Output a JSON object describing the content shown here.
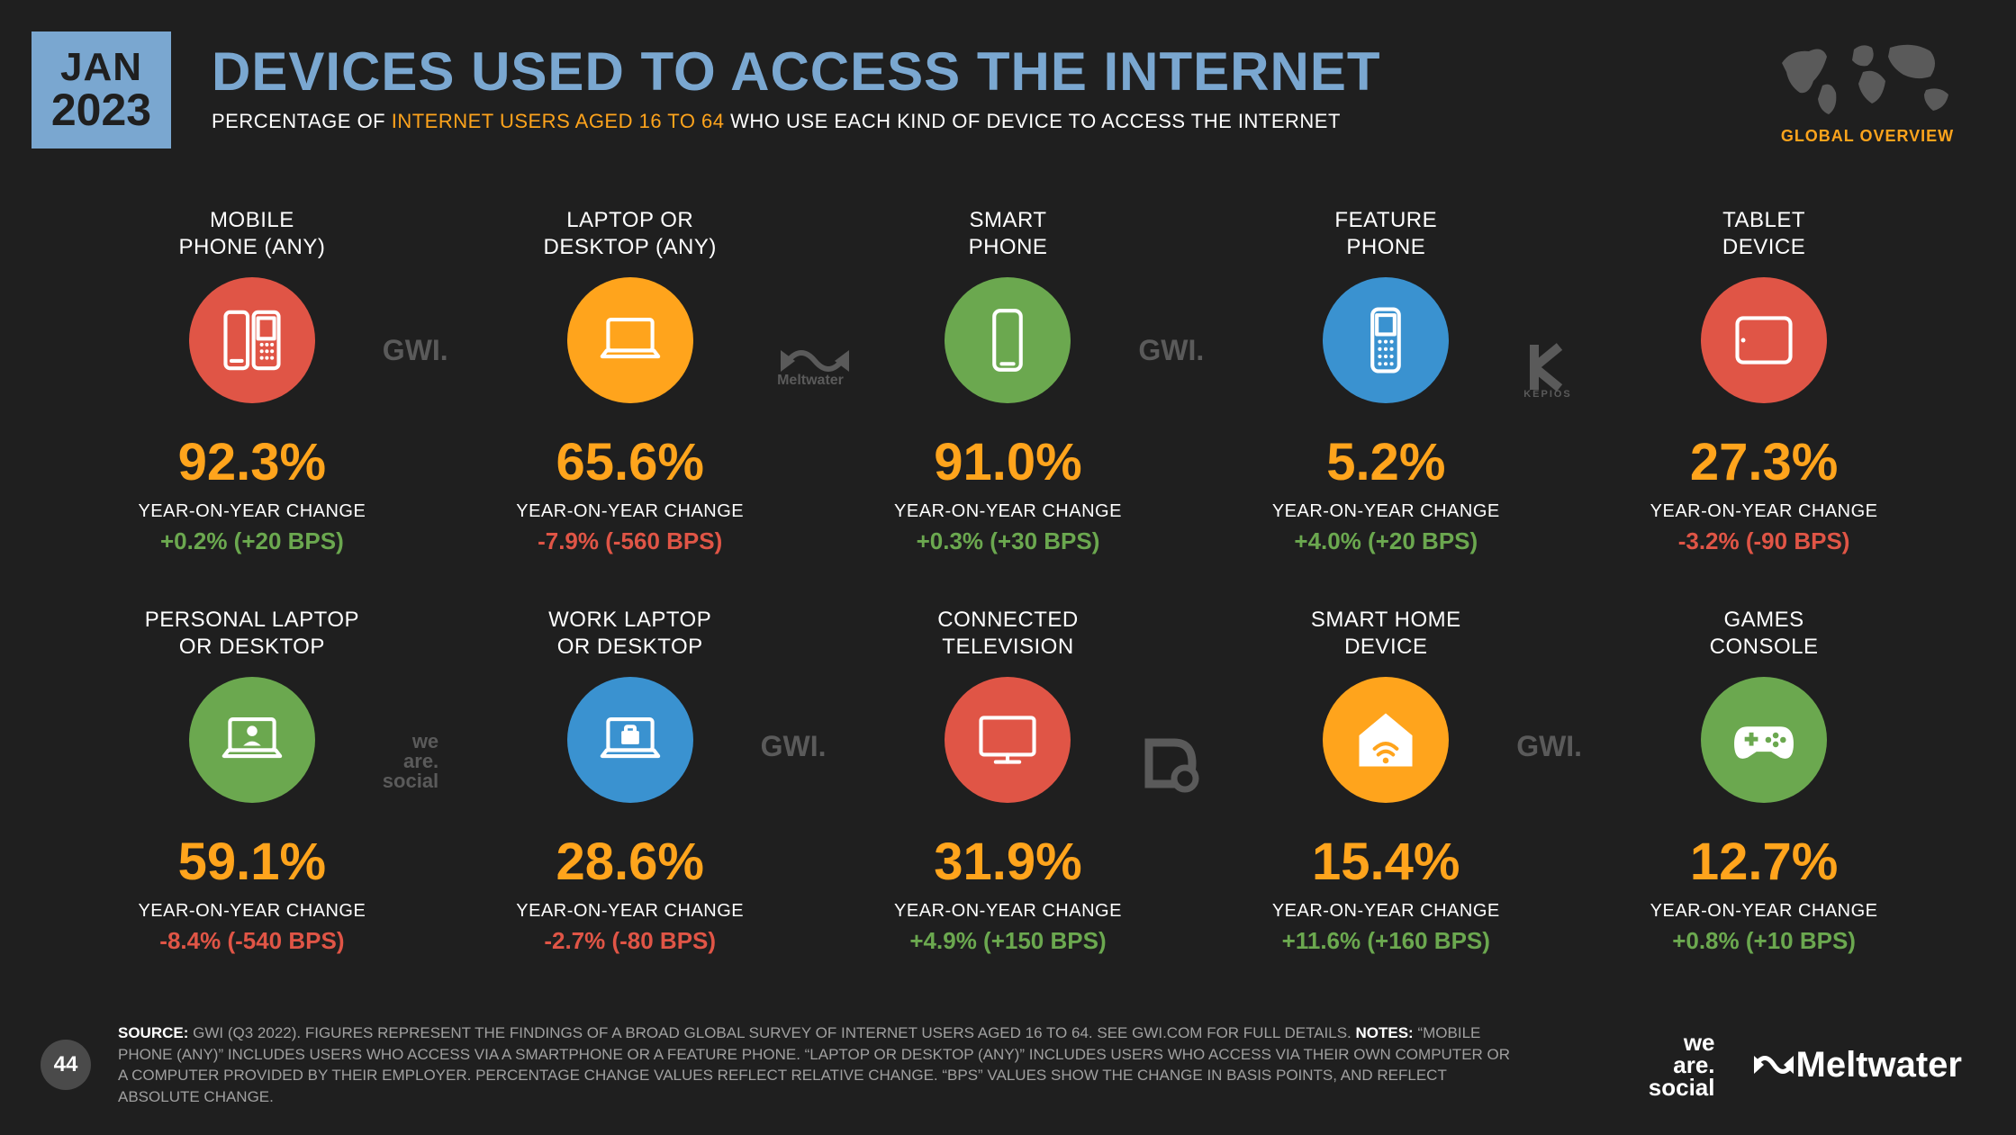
{
  "colors": {
    "bg": "#1f1f1f",
    "badge_bg": "#7aa7d0",
    "title": "#7aa7d0",
    "accent": "#ffa41c",
    "pos": "#6ba84f",
    "neg": "#e05546",
    "wm": "#5a5a5a",
    "circle_red": "#e05546",
    "circle_orange": "#ffa41c",
    "circle_green": "#6ba84f",
    "circle_blue": "#3a92d0"
  },
  "header": {
    "month": "JAN",
    "year": "2023",
    "title": "DEVICES USED TO ACCESS THE INTERNET",
    "subtitle_pre": "PERCENTAGE OF ",
    "subtitle_hl": "INTERNET USERS AGED 16 TO 64",
    "subtitle_post": " WHO USE EACH KIND OF DEVICE TO ACCESS THE INTERNET",
    "global": "GLOBAL OVERVIEW"
  },
  "yoy_label": "YEAR-ON-YEAR CHANGE",
  "items": [
    {
      "label": "MOBILE\nPHONE (ANY)",
      "value": "92.3%",
      "change": "+0.2% (+20 BPS)",
      "pos": true,
      "color": "#e05546",
      "icon": "mobile-any"
    },
    {
      "label": "LAPTOP OR\nDESKTOP (ANY)",
      "value": "65.6%",
      "change": "-7.9% (-560 BPS)",
      "pos": false,
      "color": "#ffa41c",
      "icon": "laptop"
    },
    {
      "label": "SMART\nPHONE",
      "value": "91.0%",
      "change": "+0.3% (+30 BPS)",
      "pos": true,
      "color": "#6ba84f",
      "icon": "smartphone"
    },
    {
      "label": "FEATURE\nPHONE",
      "value": "5.2%",
      "change": "+4.0% (+20 BPS)",
      "pos": true,
      "color": "#3a92d0",
      "icon": "feature-phone"
    },
    {
      "label": "TABLET\nDEVICE",
      "value": "27.3%",
      "change": "-3.2% (-90 BPS)",
      "pos": false,
      "color": "#e05546",
      "icon": "tablet"
    },
    {
      "label": "PERSONAL LAPTOP\nOR DESKTOP",
      "value": "59.1%",
      "change": "-8.4% (-540 BPS)",
      "pos": false,
      "color": "#6ba84f",
      "icon": "laptop-user"
    },
    {
      "label": "WORK LAPTOP\nOR DESKTOP",
      "value": "28.6%",
      "change": "-2.7% (-80 BPS)",
      "pos": false,
      "color": "#3a92d0",
      "icon": "laptop-work"
    },
    {
      "label": "CONNECTED\nTELEVISION",
      "value": "31.9%",
      "change": "+4.9% (+150 BPS)",
      "pos": true,
      "color": "#e05546",
      "icon": "tv"
    },
    {
      "label": "SMART HOME\nDEVICE",
      "value": "15.4%",
      "change": "+11.6% (+160 BPS)",
      "pos": true,
      "color": "#ffa41c",
      "icon": "smart-home"
    },
    {
      "label": "GAMES\nCONSOLE",
      "value": "12.7%",
      "change": "+0.8% (+10 BPS)",
      "pos": true,
      "color": "#6ba84f",
      "icon": "gamepad"
    }
  ],
  "watermarks_row1": [
    "GWI.",
    "meltwater",
    "GWI.",
    "kepios"
  ],
  "watermarks_row2": [
    "we\nare.\nsocial",
    "GWI.",
    "datareportal",
    "GWI."
  ],
  "footer": {
    "page": "44",
    "source_label": "SOURCE:",
    "source": " GWI (Q3 2022). FIGURES REPRESENT THE FINDINGS OF A BROAD GLOBAL SURVEY OF INTERNET USERS AGED 16 TO 64. SEE GWI.COM FOR FULL DETAILS. ",
    "notes_label": "NOTES:",
    "notes": " “MOBILE PHONE (ANY)” INCLUDES USERS WHO ACCESS VIA A SMARTPHONE OR A FEATURE PHONE. “LAPTOP OR DESKTOP (ANY)” INCLUDES USERS WHO ACCESS VIA THEIR OWN COMPUTER OR A COMPUTER PROVIDED BY THEIR EMPLOYER. PERCENTAGE CHANGE VALUES REFLECT RELATIVE CHANGE. “BPS” VALUES SHOW THE CHANGE IN BASIS POINTS, AND REFLECT ABSOLUTE CHANGE.",
    "logo1": "we\nare.\nsocial",
    "logo2": "Meltwater"
  }
}
